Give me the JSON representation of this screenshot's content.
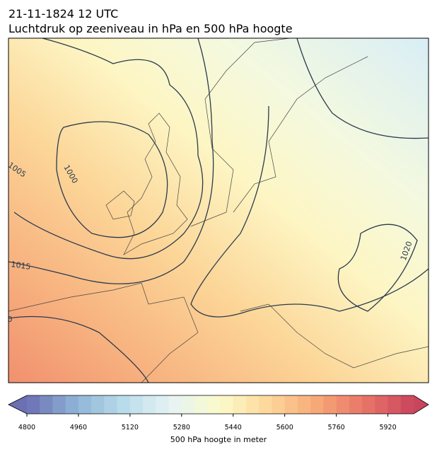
{
  "header": {
    "title": [
      "21-11-1824 12 UTC",
      "Luchtdruk op zeeniveau in hPa en 500 hPa hoogte"
    ]
  },
  "map": {
    "contour_labels": [
      "1005",
      "1000",
      "1015",
      "1020",
      "0"
    ]
  },
  "colorbar": {
    "label": "500 hPa hoogte in meter",
    "lim": [
      4800,
      6000
    ],
    "ticks": [
      4800,
      4960,
      5120,
      5280,
      5440,
      5600,
      5760,
      5920
    ],
    "colors": [
      "#6b6fb3",
      "#8fb3d6",
      "#b9dcea",
      "#e6f4f4",
      "#fcfacb",
      "#fdd79a",
      "#f7a877",
      "#e87468",
      "#c9455e"
    ]
  }
}
